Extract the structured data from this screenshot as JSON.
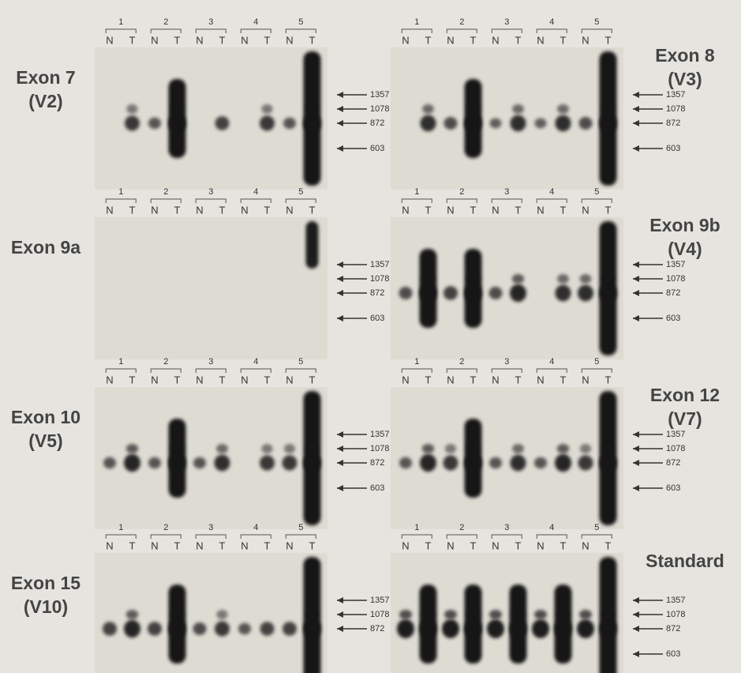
{
  "panels": [
    {
      "label": "Exon 7",
      "sublabel": "(V2)",
      "groups": [
        "1",
        "2",
        "3",
        "4",
        "5"
      ],
      "letters": [
        "N",
        "T"
      ],
      "markers": [
        "1357",
        "1078",
        "872",
        "603"
      ]
    },
    {
      "label": "Exon 8",
      "sublabel": "(V3)",
      "groups": [
        "1",
        "2",
        "3",
        "4",
        "5"
      ],
      "letters": [
        "N",
        "T"
      ],
      "markers": [
        "1357",
        "1078",
        "872",
        "603"
      ]
    },
    {
      "label": "Exon 9a",
      "groups": [
        "1",
        "2",
        "3",
        "4",
        "5"
      ],
      "letters": [
        "N",
        "T"
      ],
      "markers": [
        "1357",
        "1078",
        "872",
        "603"
      ]
    },
    {
      "label": "Exon 9b",
      "sublabel": "(V4)",
      "groups": [
        "1",
        "2",
        "3",
        "4",
        "5"
      ],
      "letters": [
        "N",
        "T"
      ],
      "markers": [
        "1357",
        "1078",
        "872",
        "603"
      ]
    },
    {
      "label": "Exon 10",
      "sublabel": "(V5)",
      "groups": [
        "1",
        "2",
        "3",
        "4",
        "5"
      ],
      "letters": [
        "N",
        "T"
      ],
      "markers": [
        "1357",
        "1078",
        "872",
        "603"
      ]
    },
    {
      "label": "Exon 12",
      "sublabel": "(V7)",
      "groups": [
        "1",
        "2",
        "3",
        "4",
        "5"
      ],
      "letters": [
        "N",
        "T"
      ],
      "markers": [
        "1357",
        "1078",
        "872",
        "603"
      ]
    },
    {
      "label": "Exon 15",
      "sublabel": "(V10)",
      "groups": [
        "1",
        "2",
        "3",
        "4",
        "5"
      ],
      "letters": [
        "N",
        "T"
      ],
      "markers": [
        "1357",
        "1078",
        "872"
      ]
    },
    {
      "label": "Standard",
      "groups": [
        "1",
        "2",
        "3",
        "4",
        "5"
      ],
      "letters": [
        "N",
        "T"
      ],
      "markers": [
        "1357",
        "1078",
        "872",
        "603"
      ]
    }
  ]
}
